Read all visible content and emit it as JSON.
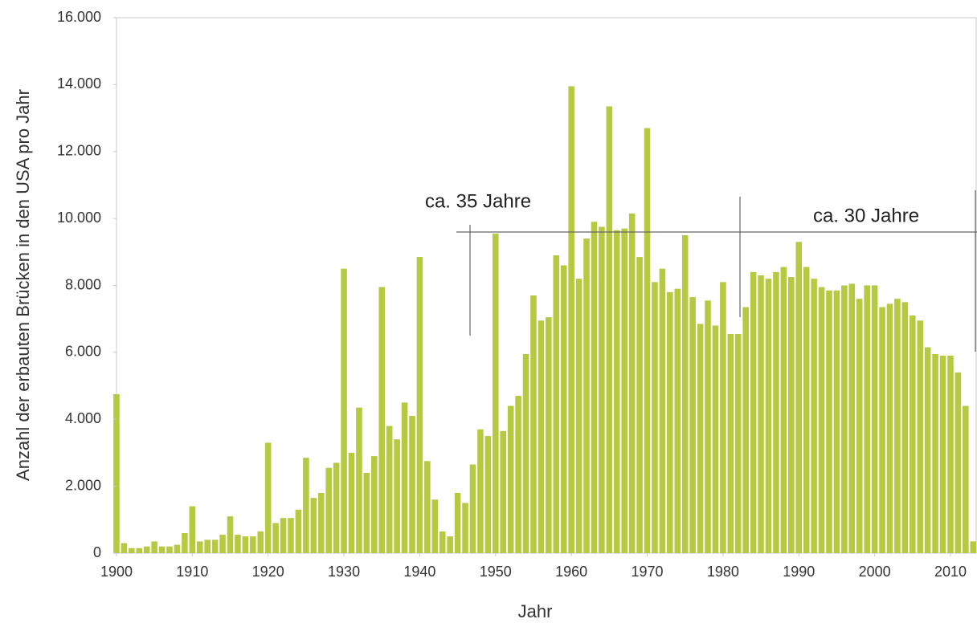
{
  "chart_data": {
    "type": "bar",
    "x_label": "Jahr",
    "y_label": "Anzahl der erbauten Brücken in den USA pro Jahr",
    "annotations": [
      "ca. 35 Jahre",
      "ca. 30 Jahre"
    ],
    "color": "#b5c941",
    "x": [
      1900,
      1901,
      1902,
      1903,
      1904,
      1905,
      1906,
      1907,
      1908,
      1909,
      1910,
      1911,
      1912,
      1913,
      1914,
      1915,
      1916,
      1917,
      1918,
      1919,
      1920,
      1921,
      1922,
      1923,
      1924,
      1925,
      1926,
      1927,
      1928,
      1929,
      1930,
      1931,
      1932,
      1933,
      1934,
      1935,
      1936,
      1937,
      1938,
      1939,
      1940,
      1941,
      1942,
      1943,
      1944,
      1945,
      1946,
      1947,
      1948,
      1949,
      1950,
      1951,
      1952,
      1953,
      1954,
      1955,
      1956,
      1957,
      1958,
      1959,
      1960,
      1961,
      1962,
      1963,
      1964,
      1965,
      1966,
      1967,
      1968,
      1969,
      1970,
      1971,
      1972,
      1973,
      1974,
      1975,
      1976,
      1977,
      1978,
      1979,
      1980,
      1981,
      1982,
      1983,
      1984,
      1985,
      1986,
      1987,
      1988,
      1989,
      1990,
      1991,
      1992,
      1993,
      1994,
      1995,
      1996,
      1997,
      1998,
      1999,
      2000,
      2001,
      2002,
      2003,
      2004,
      2005,
      2006,
      2007,
      2008,
      2009,
      2010,
      2011,
      2012,
      2013
    ],
    "values": [
      4750,
      300,
      150,
      150,
      200,
      350,
      200,
      200,
      250,
      600,
      1400,
      350,
      400,
      400,
      550,
      1100,
      550,
      500,
      500,
      650,
      3300,
      900,
      1050,
      1050,
      1300,
      2850,
      1650,
      1800,
      2550,
      2700,
      8500,
      3000,
      4350,
      2400,
      2900,
      7950,
      3800,
      3400,
      4500,
      4100,
      8850,
      2750,
      1600,
      650,
      500,
      1800,
      1500,
      2650,
      3700,
      3500,
      9550,
      3650,
      4400,
      4700,
      5950,
      7700,
      6950,
      7050,
      8900,
      8600,
      13950,
      8200,
      9400,
      9900,
      9750,
      13350,
      9650,
      9700,
      10150,
      8850,
      12700,
      8100,
      8500,
      7800,
      7900,
      9500,
      7650,
      6850,
      7550,
      6800,
      8100,
      6550,
      6550,
      7350,
      8400,
      8300,
      8200,
      8400,
      8550,
      8250,
      9300,
      8550,
      8200,
      7950,
      7850,
      7850,
      8000,
      8050,
      7600,
      8000,
      8000,
      7350,
      7450,
      7600,
      7500,
      7100,
      6950,
      6150,
      5950,
      5900,
      5900,
      5400,
      4400,
      350
    ],
    "xlim": [
      1899.5,
      2013.5
    ],
    "xticks": [
      1900,
      1910,
      1920,
      1930,
      1940,
      1950,
      1960,
      1970,
      1980,
      1990,
      2000,
      2010
    ],
    "ylim": [
      0,
      16000
    ],
    "yticks": [
      0,
      {
        "value": 2000,
        "label": "2.000"
      },
      {
        "value": 4000,
        "label": "4.000"
      },
      {
        "value": 6000,
        "label": "6.000"
      },
      {
        "value": 8000,
        "label": "8.000"
      },
      {
        "value": 10000,
        "label": "10.000"
      },
      {
        "value": 12000,
        "label": "12.000"
      },
      {
        "value": 14000,
        "label": "14.000"
      },
      {
        "value": 16000,
        "label": "16.000"
      }
    ]
  }
}
